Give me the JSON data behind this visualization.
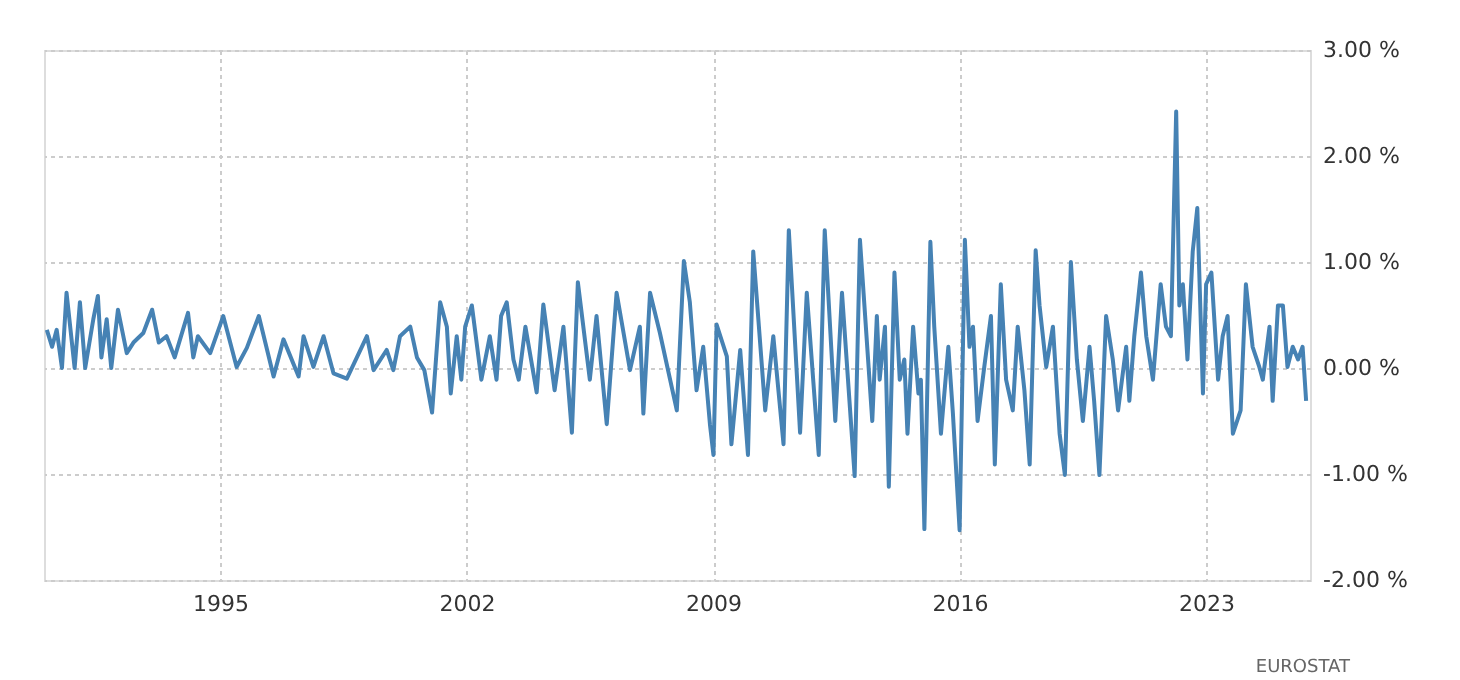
{
  "chart_data": {
    "type": "line",
    "x": [
      1990.08,
      1990.23,
      1990.36,
      1990.51,
      1990.64,
      1990.87,
      1991.02,
      1991.17,
      1991.4,
      1991.53,
      1991.63,
      1991.78,
      1991.91,
      1992.1,
      1992.35,
      1992.54,
      1992.82,
      1993.07,
      1993.26,
      1993.48,
      1993.71,
      1994.09,
      1994.24,
      1994.37,
      1994.72,
      1995.09,
      1995.47,
      1995.76,
      1996.1,
      1996.52,
      1996.8,
      1997.23,
      1997.37,
      1997.65,
      1997.94,
      1998.22,
      1998.6,
      1999.17,
      1999.36,
      1999.73,
      1999.92,
      2000.11,
      2000.4,
      2000.59,
      2000.8,
      2001.02,
      2001.25,
      2001.44,
      2001.55,
      2001.72,
      2001.85,
      2001.96,
      2002.15,
      2002.42,
      2002.66,
      2002.85,
      2002.98,
      2003.14,
      2003.33,
      2003.48,
      2003.67,
      2003.99,
      2004.18,
      2004.5,
      2004.75,
      2004.99,
      2005.16,
      2005.5,
      2005.69,
      2005.98,
      2006.26,
      2006.64,
      2006.92,
      2007.02,
      2007.21,
      2007.49,
      2007.97,
      2008.17,
      2008.34,
      2008.53,
      2008.72,
      2008.91,
      2009.01,
      2009.1,
      2009.39,
      2009.52,
      2009.77,
      2009.99,
      2010.14,
      2010.48,
      2010.71,
      2011.0,
      2011.15,
      2011.47,
      2011.66,
      2012.0,
      2012.17,
      2012.47,
      2012.66,
      2013.02,
      2013.17,
      2013.52,
      2013.65,
      2013.73,
      2013.88,
      2013.99,
      2014.15,
      2014.3,
      2014.43,
      2014.52,
      2014.68,
      2014.83,
      2014.9,
      2015.0,
      2015.17,
      2015.28,
      2015.47,
      2015.68,
      2015.81,
      2016.0,
      2016.15,
      2016.28,
      2016.38,
      2016.51,
      2016.7,
      2016.89,
      2017.0,
      2017.17,
      2017.32,
      2017.51,
      2017.65,
      2017.84,
      2017.99,
      2018.16,
      2018.27,
      2018.46,
      2018.65,
      2018.84,
      2018.99,
      2019.16,
      2019.33,
      2019.5,
      2019.69,
      2019.82,
      2019.97,
      2020.16,
      2020.35,
      2020.5,
      2020.73,
      2020.82,
      2020.96,
      2021.15,
      2021.3,
      2021.49,
      2021.71,
      2021.86,
      2022.0,
      2022.15,
      2022.24,
      2022.34,
      2022.47,
      2022.62,
      2022.75,
      2022.91,
      2023.0,
      2023.15,
      2023.34,
      2023.47,
      2023.61,
      2023.76,
      2023.98,
      2024.13,
      2024.32,
      2024.51,
      2024.61,
      2024.8,
      2024.89,
      2025.04,
      2025.18,
      2025.31,
      2025.46,
      2025.61,
      2025.74,
      2025.84
    ],
    "series": [
      {
        "color": "#4682b4",
        "values": [
          0.36,
          0.2,
          0.36,
          0,
          0.71,
          0,
          0.62,
          0,
          0.46,
          0.68,
          0.1,
          0.46,
          0,
          0.55,
          0.14,
          0.24,
          0.33,
          0.55,
          0.24,
          0.3,
          0.1,
          0.52,
          0.1,
          0.3,
          0.14,
          0.49,
          0.01,
          0.19,
          0.49,
          -0.08,
          0.27,
          -0.08,
          0.3,
          0.01,
          0.3,
          -0.05,
          -0.1,
          0.3,
          -0.02,
          0.17,
          -0.02,
          0.3,
          0.39,
          0.1,
          -0.02,
          -0.42,
          0.62,
          0.39,
          -0.24,
          0.3,
          -0.11,
          0.39,
          0.59,
          -0.11,
          0.3,
          -0.11,
          0.49,
          0.62,
          0.08,
          -0.11,
          0.39,
          -0.23,
          0.6,
          -0.21,
          0.39,
          -0.61,
          0.81,
          -0.11,
          0.49,
          -0.53,
          0.71,
          -0.02,
          0.39,
          -0.43,
          0.71,
          0.33,
          -0.4,
          1.01,
          0.62,
          -0.21,
          0.2,
          -0.53,
          -0.82,
          0.41,
          0.11,
          -0.72,
          0.17,
          -0.82,
          1.1,
          -0.4,
          0.3,
          -0.72,
          1.3,
          -0.61,
          0.71,
          -0.82,
          1.3,
          -0.5,
          0.71,
          -1.02,
          1.21,
          -0.5,
          0.49,
          -0.11,
          0.39,
          -1.12,
          0.9,
          -0.11,
          0.08,
          -0.62,
          0.39,
          -0.24,
          -0.11,
          -1.52,
          1.19,
          0.39,
          -0.62,
          0.2,
          -0.43,
          -1.53,
          1.21,
          0.2,
          0.39,
          -0.5,
          0.01,
          0.49,
          -0.91,
          0.79,
          -0.11,
          -0.4,
          0.39,
          -0.21,
          -0.91,
          1.11,
          0.59,
          0.01,
          0.39,
          -0.62,
          -1.01,
          1.0,
          0.08,
          -0.5,
          0.2,
          -0.31,
          -1.01,
          0.49,
          0.08,
          -0.4,
          0.2,
          -0.31,
          0.3,
          0.9,
          0.3,
          -0.11,
          0.79,
          0.39,
          0.3,
          2.42,
          0.59,
          0.79,
          0.08,
          1.1,
          1.51,
          -0.24,
          0.79,
          0.9,
          -0.11,
          0.3,
          0.49,
          -0.62,
          -0.4,
          0.79,
          0.2,
          0.01,
          -0.11,
          0.39,
          -0.31,
          0.59,
          0.59,
          0.01,
          0.2,
          0.08,
          0.2,
          -0.31
        ]
      }
    ],
    "xlim": [
      1990.0,
      2025.95
    ],
    "xticks": [
      1995,
      2002,
      2009,
      2016,
      2023
    ],
    "ylim": [
      -2,
      3
    ],
    "yticks": [
      {
        "value": -2,
        "label": "-2.00 %"
      },
      {
        "value": -1,
        "label": "-1.00 %"
      },
      {
        "value": 0,
        "label": "0.00 %"
      },
      {
        "value": 1,
        "label": "1.00 %"
      },
      {
        "value": 2,
        "label": "2.00 %"
      },
      {
        "value": 3,
        "label": "3.00 %"
      }
    ],
    "grid": true,
    "line_style": "solid",
    "marker": "none",
    "annotations": [
      "EUROSTAT"
    ]
  }
}
